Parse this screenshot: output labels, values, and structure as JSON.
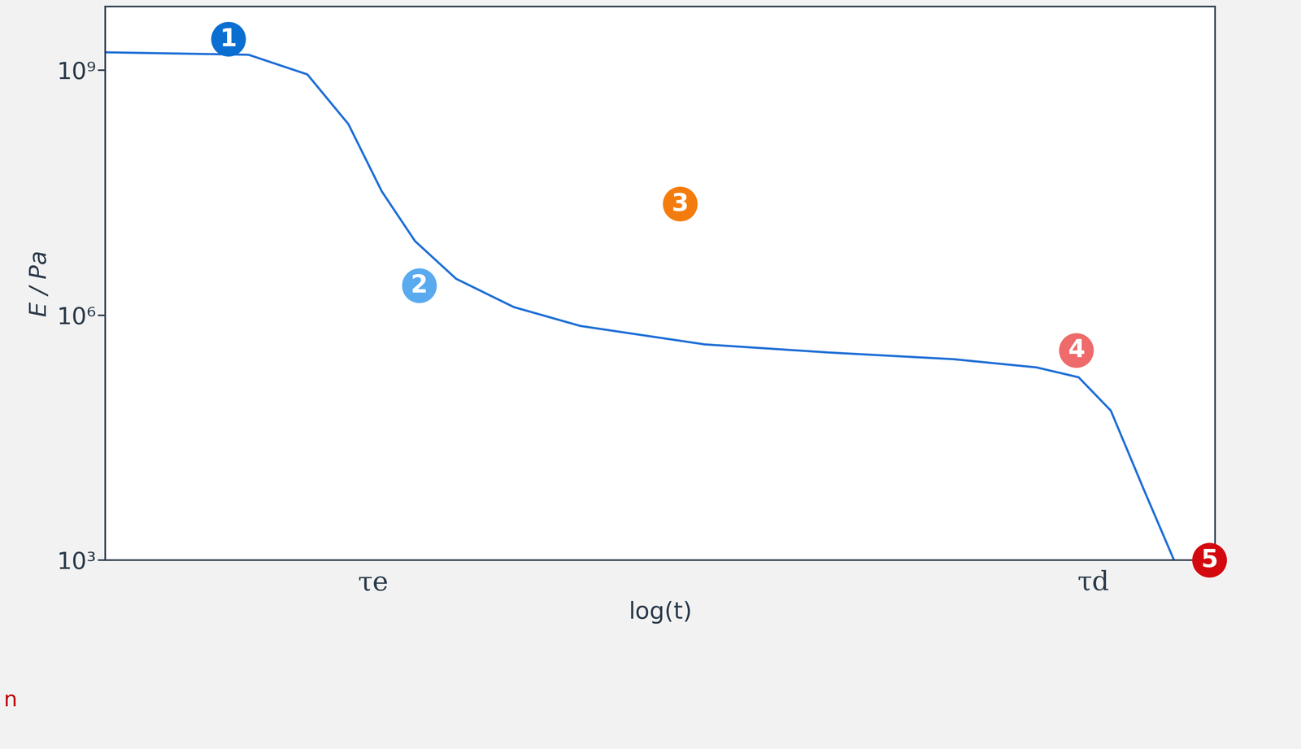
{
  "chart_data": {
    "type": "line",
    "log": "y",
    "grid": false,
    "x_label": "log(t)",
    "y_label": "E / Pa",
    "color": "#1f6fd6",
    "x": [
      0,
      1.29,
      1.82,
      2.19,
      2.49,
      2.79,
      3.16,
      3.68,
      4.28,
      5.4,
      6.52,
      7.64,
      8.39,
      8.77,
      9.06,
      9.36,
      9.63
    ],
    "values": [
      1660000000,
      1550000000,
      890000000,
      219000000,
      33000000,
      8100000,
      2800000,
      1260000,
      740000,
      440000,
      350000,
      290000,
      230000,
      174000,
      68000,
      7200,
      1000
    ],
    "xlim": [
      0,
      10
    ],
    "xticks": [
      {
        "value": 2.41,
        "label": "τe"
      },
      {
        "value": 8.9,
        "label": "τd"
      }
    ],
    "ylim": [
      1000,
      6000000000
    ],
    "yticks": [
      {
        "value": 1000,
        "label": "10³"
      },
      {
        "value": 1000000,
        "label": "10⁶"
      },
      {
        "value": 1000000000,
        "label": "10⁹"
      }
    ],
    "markers": [
      {
        "label": "1",
        "x": 1.11,
        "y": 2400000000,
        "color": "#0a6fd1"
      },
      {
        "label": "2",
        "x": 2.83,
        "y": 2300000,
        "color": "#5aaaf0"
      },
      {
        "label": "3",
        "x": 5.18,
        "y": 23000000,
        "color": "#f47c0f"
      },
      {
        "label": "4",
        "x": 8.75,
        "y": 370000,
        "color": "#ef6a6a"
      },
      {
        "label": "5",
        "x": 9.95,
        "y": 1000,
        "color": "#d3090f"
      }
    ],
    "side_text": {
      "text": "n",
      "color": "#c00000"
    }
  }
}
